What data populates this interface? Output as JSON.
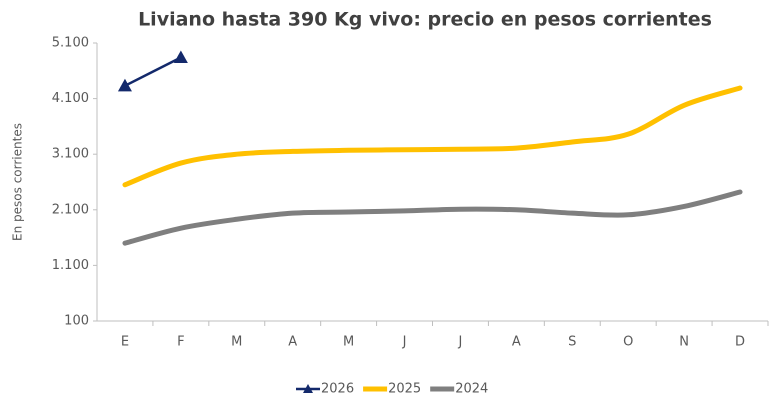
{
  "chart_data": {
    "type": "line",
    "title": "Liviano hasta 390 Kg vivo: precio en pesos corrientes",
    "y_label": "En pesos corrientes",
    "categories": [
      "E",
      "F",
      "M",
      "A",
      "M",
      "J",
      "J",
      "A",
      "S",
      "O",
      "N",
      "D"
    ],
    "series": [
      {
        "name": "2026",
        "color": "#13296b",
        "marker": "triangle",
        "values": [
          4330,
          4840,
          null,
          null,
          null,
          null,
          null,
          null,
          null,
          null,
          null,
          null
        ]
      },
      {
        "name": "2025",
        "color": "#ffc000",
        "values": [
          2550,
          2940,
          3100,
          3150,
          3170,
          3180,
          3190,
          3210,
          3320,
          3460,
          3980,
          4290
        ]
      },
      {
        "name": "2024",
        "color": "#7f7f7f",
        "values": [
          1500,
          1770,
          1930,
          2040,
          2060,
          2080,
          2110,
          2100,
          2040,
          2010,
          2160,
          2420
        ]
      }
    ],
    "ylim": [
      100,
      5100
    ],
    "yticks": [
      100,
      {
        "value": 1100,
        "label": "1.100"
      },
      {
        "value": 2100,
        "label": "2.100"
      },
      {
        "value": 3100,
        "label": "3.100"
      },
      {
        "value": 4100,
        "label": "4.100"
      },
      {
        "value": 5100,
        "label": "5.100"
      }
    ],
    "grid": false,
    "legend": "bottom"
  }
}
